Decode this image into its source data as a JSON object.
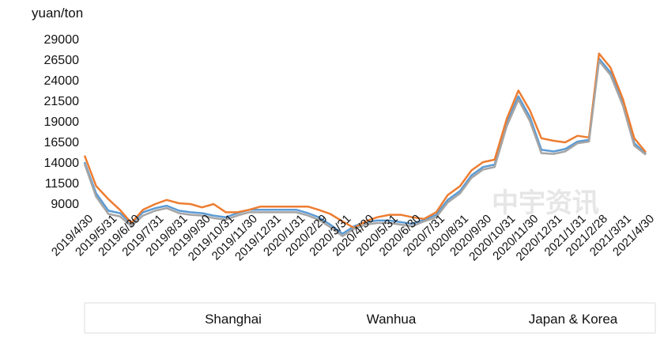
{
  "chart_data": {
    "type": "line",
    "y_label": "yuan/ton",
    "watermark": "中宇资讯",
    "x": [
      "2019/4/30",
      "2019/5/15",
      "2019/5/31",
      "2019/6/15",
      "2019/6/30",
      "2019/7/15",
      "2019/7/31",
      "2019/8/15",
      "2019/8/31",
      "2019/9/15",
      "2019/9/30",
      "2019/10/15",
      "2019/10/31",
      "2019/11/15",
      "2019/11/30",
      "2019/12/15",
      "2019/12/31",
      "2020/1/15",
      "2020/1/31",
      "2020/2/15",
      "2020/2/29",
      "2020/3/15",
      "2020/3/31",
      "2020/4/15",
      "2020/4/30",
      "2020/5/15",
      "2020/5/31",
      "2020/6/15",
      "2020/6/30",
      "2020/7/15",
      "2020/7/31",
      "2020/8/15",
      "2020/8/31",
      "2020/9/15",
      "2020/9/30",
      "2020/10/15",
      "2020/10/31",
      "2020/11/15",
      "2020/11/30",
      "2020/12/15",
      "2020/12/31",
      "2021/1/15",
      "2021/1/31",
      "2021/2/15",
      "2021/2/28",
      "2021/3/15",
      "2021/3/31",
      "2021/4/15",
      "2021/4/30"
    ],
    "series": [
      {
        "name": "Shanghai",
        "color": "#5b9bd5",
        "values": [
          14000,
          10200,
          8100,
          7800,
          6500,
          7900,
          8400,
          8700,
          8100,
          7900,
          7800,
          7500,
          7300,
          7800,
          8200,
          8200,
          8200,
          8200,
          8200,
          7800,
          7300,
          6400,
          5300,
          6200,
          6700,
          6900,
          6900,
          6700,
          6500,
          7000,
          7600,
          9400,
          10500,
          12400,
          13400,
          13700,
          18800,
          22000,
          19500,
          15500,
          15300,
          15600,
          16500,
          16700,
          26600,
          24900,
          21200,
          16300,
          15000
        ]
      },
      {
        "name": "Wanhua",
        "color": "#ed7d31",
        "values": [
          14800,
          11100,
          9500,
          8200,
          6600,
          8200,
          8900,
          9400,
          9000,
          8900,
          8500,
          8900,
          7900,
          7900,
          8200,
          8600,
          8600,
          8600,
          8600,
          8600,
          8200,
          7700,
          6800,
          6000,
          6800,
          7300,
          7600,
          7600,
          7300,
          7100,
          7900,
          10000,
          11100,
          13000,
          14000,
          14300,
          19300,
          22700,
          20300,
          16900,
          16600,
          16400,
          17200,
          17000,
          27200,
          25500,
          21700,
          16900,
          15200
        ]
      },
      {
        "name": "Japan & Korea",
        "color": "#a5a5a5",
        "values": [
          13800,
          9800,
          7700,
          7400,
          6200,
          7500,
          8100,
          8400,
          7800,
          7600,
          7500,
          7200,
          7000,
          7500,
          7900,
          7900,
          7900,
          7900,
          7900,
          7500,
          7000,
          6100,
          5000,
          5900,
          6400,
          6600,
          6600,
          6400,
          6200,
          6800,
          7300,
          9100,
          10200,
          12100,
          13100,
          13400,
          18400,
          21600,
          19000,
          15100,
          15000,
          15300,
          16300,
          16500,
          26300,
          24600,
          20900,
          16000,
          14900
        ]
      }
    ],
    "ylim": [
      4000,
      29000
    ],
    "yticks": [
      9000,
      11500,
      14000,
      16500,
      19000,
      21500,
      24000,
      26500,
      29000
    ],
    "xticks": [
      "2019/4/30",
      "2019/5/31",
      "2019/6/30",
      "2019/7/31",
      "2019/8/31",
      "2019/9/30",
      "2019/10/31",
      "2019/11/30",
      "2019/12/31",
      "2020/1/31",
      "2020/2/29",
      "2020/3/31",
      "2020/4/30",
      "2020/5/31",
      "2020/6/30",
      "2020/7/31",
      "2020/8/31",
      "2020/9/30",
      "2020/10/31",
      "2020/11/30",
      "2020/12/31",
      "2021/1/31",
      "2021/2/28",
      "2021/3/31",
      "2021/4/30"
    ],
    "legend": "bottom",
    "grid": false
  }
}
